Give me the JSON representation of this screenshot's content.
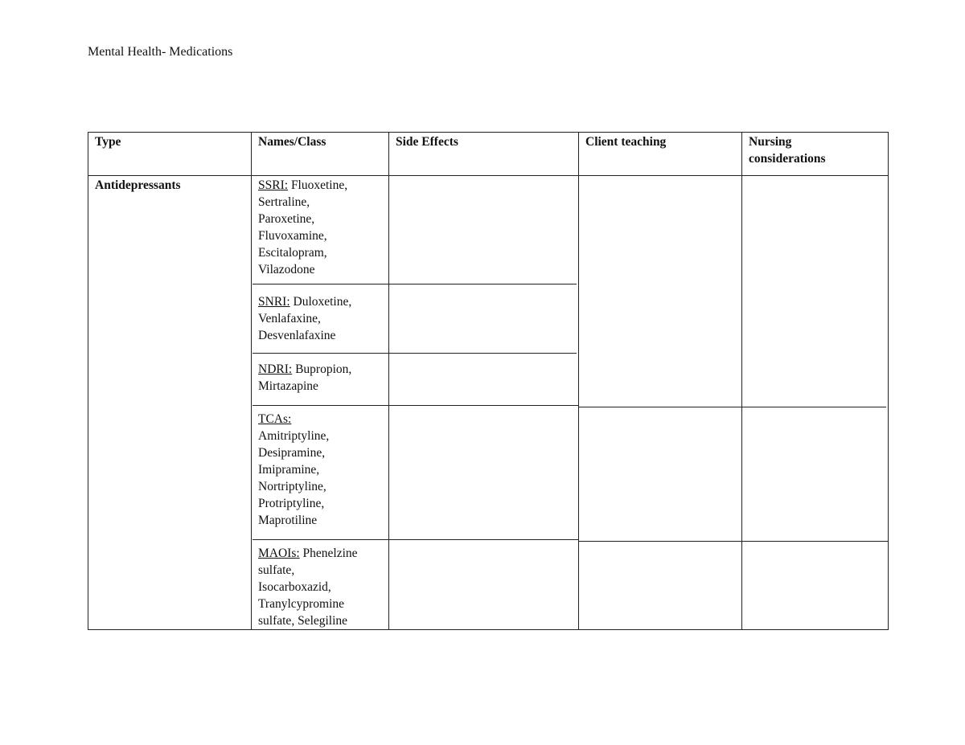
{
  "document": {
    "title": "Mental Health- Medications"
  },
  "table": {
    "headers": [
      "Type",
      "Names/Class",
      "Side Effects",
      "Client teaching",
      "Nursing considerations"
    ],
    "type": "Antidepressants",
    "classes": [
      {
        "label": "SSRI:",
        "drugs": [
          "Fluoxetine,",
          "Sertraline,",
          "Paroxetine,",
          "Fluvoxamine,",
          "Escitalopram,",
          "Vilazodone"
        ]
      },
      {
        "label": "SNRI:",
        "drugs": [
          "Duloxetine,",
          "Venlafaxine,",
          "Desvenlafaxine"
        ]
      },
      {
        "label": "NDRI:",
        "drugs": [
          "Bupropion,",
          "Mirtazapine"
        ]
      },
      {
        "label": "TCAs:",
        "drugs": [
          "Amitriptyline,",
          "Desipramine,",
          "Imipramine,",
          "Nortriptyline,",
          "Protriptyline,",
          "Maprotiline"
        ]
      },
      {
        "label": "MAOIs:",
        "drugs": [
          "Phenelzine",
          "sulfate,",
          "Isocarboxazid,",
          "Tranylcypromine",
          "sulfate, Selegiline"
        ]
      }
    ]
  }
}
